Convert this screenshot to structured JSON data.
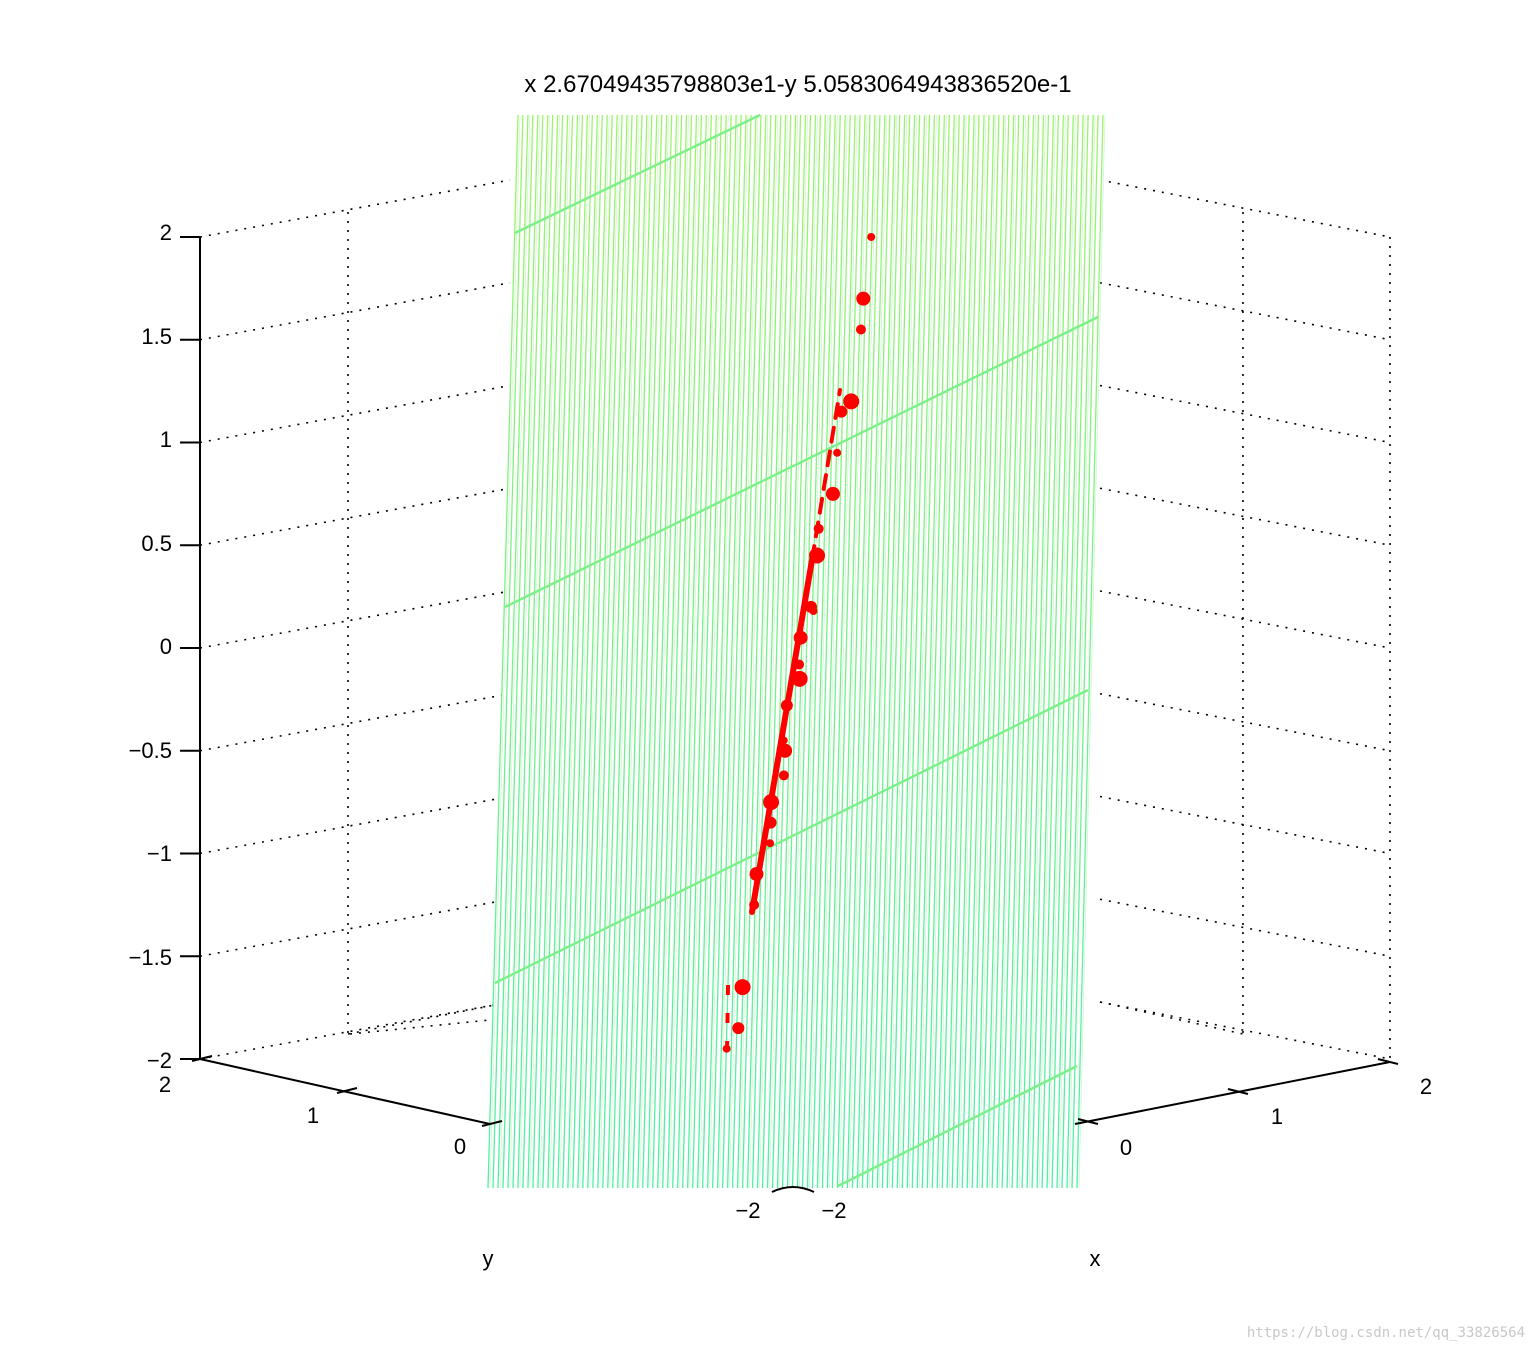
{
  "chart_data": {
    "type": "scatter",
    "title": "x 2.67049435798803e1-y 5.0583064943836520e-1",
    "xlabel": "x",
    "ylabel": "y",
    "zlabel": "",
    "xlim": [
      -2,
      2
    ],
    "ylim": [
      -2,
      2
    ],
    "zlim": [
      -2,
      2
    ],
    "z_ticks": [
      "2",
      "1.5",
      "1",
      "0.5",
      "0",
      "−0.5",
      "−1",
      "−1.5",
      "−2"
    ],
    "y_ticks": [
      "2",
      "1",
      "0",
      "−2"
    ],
    "x_ticks": [
      "2",
      "1",
      "0",
      "−2"
    ],
    "grid": true,
    "surface": {
      "description_equation": "z = 26.7049435798803*x - 0.505830649438365*y",
      "colormap": "green gradient",
      "colors": [
        "#8ef07a",
        "#52f0a0"
      ]
    },
    "points": {
      "color": "#ff0000",
      "z_values": [
        2.0,
        1.7,
        1.55,
        1.2,
        1.15,
        0.95,
        0.75,
        0.58,
        0.45,
        0.2,
        0.18,
        0.05,
        -0.08,
        -0.15,
        -0.28,
        -0.45,
        -0.5,
        -0.62,
        -0.75,
        -0.85,
        -0.95,
        -1.1,
        -1.25,
        -1.65,
        -1.85,
        -1.95
      ]
    }
  },
  "watermark": "https://blog.csdn.net/qq_33826564"
}
